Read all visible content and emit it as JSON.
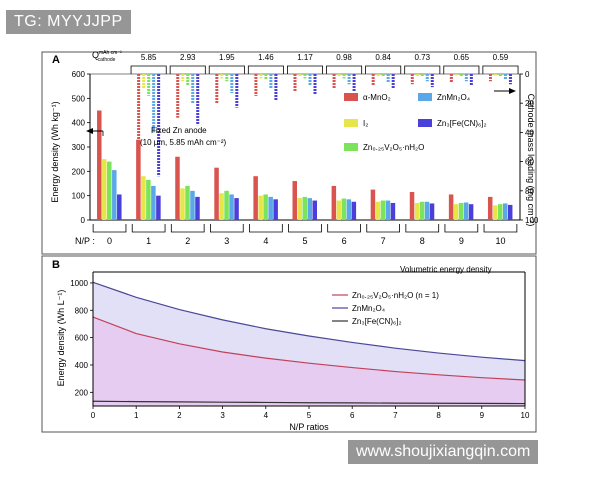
{
  "watermarks": {
    "top_left": "TG: MYYJJPP",
    "bottom_right": "www.shoujixiangqin.com"
  },
  "colors": {
    "MnO2": "#d9534f",
    "I2": "#e6e64a",
    "ZnVO": "#7ce35c",
    "ZnMn2O4": "#5aa8e8",
    "ZnFeCN": "#4a3fd9",
    "curve_vo": "#c2415a",
    "curve_mn": "#4a4899",
    "curve_fe": "#333333",
    "fill_mn": "#dcdaf5",
    "fill_vo": "#e6c8ee",
    "panel_bg": "#ffffff",
    "panel_border": "#555555"
  },
  "chart_data": [
    {
      "panel": "A",
      "type": "bar",
      "ylabel": "Energy density (Wh kg⁻¹)",
      "ylabel_right": "Cathode mass loading (mg cm⁻²)",
      "xlabel": "N/P :",
      "ylim": [
        0,
        600
      ],
      "ylim_right": [
        100,
        0
      ],
      "yticks": [
        0,
        100,
        200,
        300,
        400,
        500,
        600
      ],
      "yticks_right": [
        0,
        20,
        40,
        60,
        80,
        100
      ],
      "top_label": "Q",
      "top_label_sup": "mAh cm⁻²",
      "top_label_sub": "cathode",
      "top_values": [
        "5.85",
        "2.93",
        "1.95",
        "1.46",
        "1.17",
        "0.98",
        "0.84",
        "0.73",
        "0.65",
        "0.59"
      ],
      "categories": [
        "0",
        "1",
        "2",
        "3",
        "4",
        "5",
        "6",
        "7",
        "8",
        "9",
        "10"
      ],
      "annotation_lines": [
        "Fixed Zn anode",
        "(10 μm, 5.85 mAh cm⁻²)"
      ],
      "legend": [
        "α-MnO₂",
        "I₂",
        "Zn₀.₂₅V₂O₅·nH₂O",
        "ZnMn₂O₄",
        "Zn₃[Fe(CN)₆]₂"
      ],
      "series": [
        {
          "name": "α-MnO₂",
          "values": [
            450,
            330,
            260,
            215,
            180,
            160,
            140,
            125,
            115,
            105,
            95
          ],
          "loading": [
            null,
            60,
            30,
            20,
            15,
            12,
            10,
            8,
            7,
            6,
            5
          ]
        },
        {
          "name": "I₂",
          "values": [
            250,
            180,
            130,
            110,
            100,
            90,
            80,
            75,
            70,
            65,
            60
          ],
          "loading": [
            null,
            10,
            5,
            3,
            3,
            2,
            2,
            2,
            2,
            1,
            1
          ]
        },
        {
          "name": "Zn₀.₂₅V₂O₅·nH₂O",
          "values": [
            240,
            165,
            140,
            120,
            105,
            95,
            88,
            80,
            75,
            70,
            65
          ],
          "loading": [
            null,
            15,
            8,
            5,
            4,
            3,
            3,
            2,
            2,
            2,
            2
          ]
        },
        {
          "name": "ZnMn₂O₄",
          "values": [
            205,
            140,
            120,
            105,
            95,
            90,
            85,
            80,
            75,
            72,
            68
          ],
          "loading": [
            null,
            40,
            20,
            13,
            10,
            8,
            7,
            6,
            5,
            5,
            4
          ]
        },
        {
          "name": "Zn₃[Fe(CN)₆]₂",
          "values": [
            105,
            100,
            95,
            90,
            85,
            80,
            75,
            70,
            68,
            65,
            62
          ],
          "loading": [
            null,
            70,
            35,
            23,
            18,
            14,
            12,
            10,
            9,
            8,
            7
          ]
        }
      ]
    },
    {
      "panel": "B",
      "type": "area",
      "title": "Volumetric energy density",
      "xlabel": "N/P ratios",
      "ylabel": "Energy density (Wh L⁻¹)",
      "xlim": [
        0,
        10
      ],
      "ylim": [
        100,
        1080
      ],
      "xticks": [
        0,
        1,
        2,
        3,
        4,
        5,
        6,
        7,
        8,
        9,
        10
      ],
      "yticks": [
        200,
        400,
        600,
        800,
        1000
      ],
      "series": [
        {
          "name": "Zn₀.₂₅V₂O₅·nH₂O (n = 1)",
          "x": [
            0,
            1,
            2,
            3,
            4,
            5,
            6,
            7,
            8,
            9,
            10
          ],
          "values": [
            750,
            630,
            555,
            495,
            450,
            413,
            381,
            352,
            328,
            307,
            290
          ]
        },
        {
          "name": "ZnMn₂O₄",
          "x": [
            0,
            1,
            2,
            3,
            4,
            5,
            6,
            7,
            8,
            9,
            10
          ],
          "values": [
            1005,
            895,
            805,
            730,
            665,
            612,
            565,
            523,
            487,
            457,
            432
          ]
        },
        {
          "name": "Zn₃[Fe(CN)₆]₂",
          "x": [
            0,
            1,
            2,
            3,
            4,
            5,
            6,
            7,
            8,
            9,
            10
          ],
          "values": [
            135,
            132,
            130,
            128,
            126,
            124,
            123,
            121,
            120,
            119,
            118
          ]
        }
      ]
    }
  ]
}
